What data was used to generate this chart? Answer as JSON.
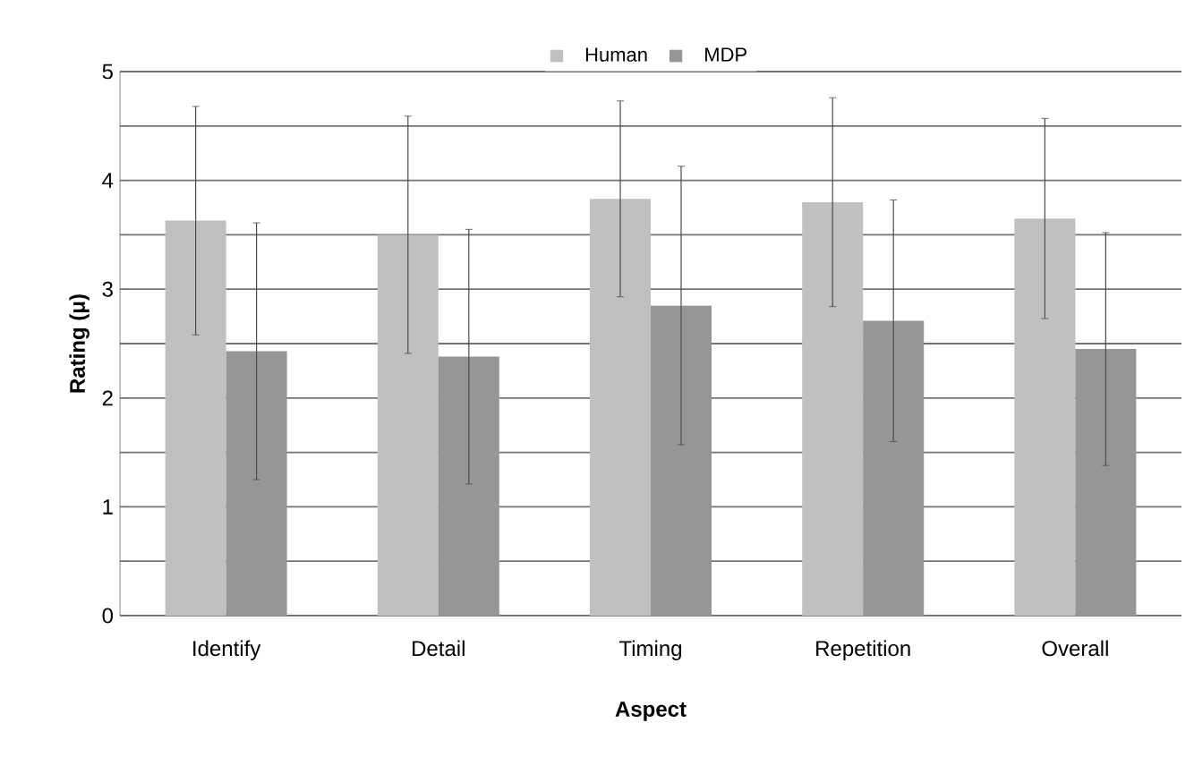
{
  "chart_data": {
    "type": "bar",
    "xlabel": "Aspect",
    "ylabel": "Rating (μ)",
    "categories": [
      "Identify",
      "Detail",
      "Timing",
      "Repetition",
      "Overall"
    ],
    "series": [
      {
        "name": "Human",
        "color": "#c0c0c0",
        "values": [
          3.63,
          3.5,
          3.83,
          3.8,
          3.65
        ],
        "errors": [
          1.05,
          1.09,
          0.9,
          0.96,
          0.92
        ]
      },
      {
        "name": "MDP",
        "color": "#969696",
        "values": [
          2.43,
          2.38,
          2.85,
          2.71,
          2.45
        ],
        "errors": [
          1.18,
          1.17,
          1.28,
          1.11,
          1.07
        ]
      }
    ],
    "ylim": [
      0,
      5
    ],
    "yticks": [
      0,
      {
        "value": 0.5,
        "label": null
      },
      1,
      {
        "value": 1.5,
        "label": null
      },
      2,
      {
        "value": 2.5,
        "label": null
      },
      3,
      {
        "value": 3.5,
        "label": null
      },
      4,
      {
        "value": 4.5,
        "label": null
      },
      5
    ],
    "grid": "y",
    "legend": "top"
  }
}
